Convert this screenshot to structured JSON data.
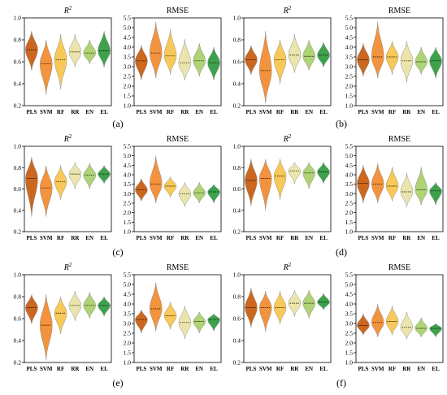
{
  "colors": {
    "PLS": "#c85a0c",
    "SVM": "#f28a2e",
    "RF": "#f7c44a",
    "RR": "#e9e3a6",
    "EN": "#a8cf6a",
    "EL": "#2e9a3e"
  },
  "chart_data": [
    {
      "label": "(a)",
      "panels": [
        {
          "type": "violin",
          "title": "R",
          "title_sup": "2",
          "categories": [
            "PLS",
            "SVM",
            "RF",
            "RR",
            "EN",
            "EL"
          ],
          "ylim": [
            0.2,
            1.0
          ],
          "yticks": [
            "0.2",
            "0.4",
            "0.6",
            "0.8",
            "1.0"
          ],
          "series": [
            {
              "name": "PLS",
              "min": 0.52,
              "max": 0.88,
              "median": 0.71
            },
            {
              "name": "SVM",
              "min": 0.3,
              "max": 0.8,
              "median": 0.58
            },
            {
              "name": "RF",
              "min": 0.35,
              "max": 0.85,
              "median": 0.62
            },
            {
              "name": "RR",
              "min": 0.55,
              "max": 0.85,
              "median": 0.69
            },
            {
              "name": "EN",
              "min": 0.58,
              "max": 0.8,
              "median": 0.68
            },
            {
              "name": "EL",
              "min": 0.55,
              "max": 0.88,
              "median": 0.7
            }
          ]
        },
        {
          "type": "violin",
          "title": "RMSE",
          "categories": [
            "PLS",
            "SVM",
            "RF",
            "RR",
            "EN",
            "EL"
          ],
          "ylim": [
            1.0,
            5.5
          ],
          "yticks": [
            "1.0",
            "1.5",
            "2.0",
            "2.5",
            "3.0",
            "3.5",
            "4.0",
            "4.5",
            "5.0",
            "5.5"
          ],
          "series": [
            {
              "name": "PLS",
              "min": 2.3,
              "max": 4.1,
              "median": 3.3
            },
            {
              "name": "SVM",
              "min": 2.4,
              "max": 5.3,
              "median": 3.7
            },
            {
              "name": "RF",
              "min": 2.6,
              "max": 4.9,
              "median": 3.55
            },
            {
              "name": "RR",
              "min": 2.3,
              "max": 4.4,
              "median": 3.2
            },
            {
              "name": "EN",
              "min": 2.5,
              "max": 4.2,
              "median": 3.3
            },
            {
              "name": "EL",
              "min": 2.3,
              "max": 4.0,
              "median": 3.2
            }
          ]
        }
      ]
    },
    {
      "label": "(b)",
      "panels": [
        {
          "type": "violin",
          "title": "R",
          "title_sup": "2",
          "categories": [
            "PLS",
            "SVM",
            "RF",
            "RR",
            "EN",
            "EL"
          ],
          "ylim": [
            0.2,
            1.0
          ],
          "yticks": [
            "0.2",
            "0.4",
            "0.6",
            "0.8",
            "1.0"
          ],
          "series": [
            {
              "name": "PLS",
              "min": 0.48,
              "max": 0.75,
              "median": 0.62
            },
            {
              "name": "SVM",
              "min": 0.22,
              "max": 0.88,
              "median": 0.52
            },
            {
              "name": "RF",
              "min": 0.4,
              "max": 0.8,
              "median": 0.62
            },
            {
              "name": "RR",
              "min": 0.5,
              "max": 0.85,
              "median": 0.66
            },
            {
              "name": "EN",
              "min": 0.52,
              "max": 0.8,
              "median": 0.65
            },
            {
              "name": "EL",
              "min": 0.55,
              "max": 0.78,
              "median": 0.66
            }
          ]
        },
        {
          "type": "violin",
          "title": "RMSE",
          "categories": [
            "PLS",
            "SVM",
            "RF",
            "RR",
            "EN",
            "EL"
          ],
          "ylim": [
            1.0,
            5.5
          ],
          "yticks": [
            "1.0",
            "1.5",
            "2.0",
            "2.5",
            "3.0",
            "3.5",
            "4.0",
            "4.5",
            "5.0",
            "5.5"
          ],
          "series": [
            {
              "name": "PLS",
              "min": 2.5,
              "max": 4.2,
              "median": 3.35
            },
            {
              "name": "SVM",
              "min": 2.4,
              "max": 5.3,
              "median": 3.5
            },
            {
              "name": "RF",
              "min": 2.6,
              "max": 4.3,
              "median": 3.5
            },
            {
              "name": "RR",
              "min": 2.2,
              "max": 4.3,
              "median": 3.3
            },
            {
              "name": "EN",
              "min": 2.6,
              "max": 4.0,
              "median": 3.25
            },
            {
              "name": "EL",
              "min": 2.4,
              "max": 4.0,
              "median": 3.3
            }
          ]
        }
      ]
    },
    {
      "label": "(c)",
      "panels": [
        {
          "type": "violin",
          "title": "R",
          "title_sup": "2",
          "categories": [
            "PLS",
            "SVM",
            "RF",
            "RR",
            "EN",
            "EL"
          ],
          "ylim": [
            0.2,
            1.0
          ],
          "yticks": [
            "0.2",
            "0.4",
            "0.6",
            "0.8",
            "1.0"
          ],
          "series": [
            {
              "name": "PLS",
              "min": 0.34,
              "max": 0.9,
              "median": 0.7
            },
            {
              "name": "SVM",
              "min": 0.34,
              "max": 0.82,
              "median": 0.61
            },
            {
              "name": "RF",
              "min": 0.5,
              "max": 0.82,
              "median": 0.67
            },
            {
              "name": "RR",
              "min": 0.6,
              "max": 0.85,
              "median": 0.74
            },
            {
              "name": "EN",
              "min": 0.6,
              "max": 0.84,
              "median": 0.73
            },
            {
              "name": "EL",
              "min": 0.65,
              "max": 0.82,
              "median": 0.74
            }
          ]
        },
        {
          "type": "violin",
          "title": "RMSE",
          "categories": [
            "PLS",
            "SVM",
            "RF",
            "RR",
            "EN",
            "EL"
          ],
          "ylim": [
            1.0,
            5.5
          ],
          "yticks": [
            "1.0",
            "1.5",
            "2.0",
            "2.5",
            "3.0",
            "3.5",
            "4.0",
            "4.5",
            "5.0",
            "5.5"
          ],
          "series": [
            {
              "name": "PLS",
              "min": 2.6,
              "max": 3.8,
              "median": 3.2
            },
            {
              "name": "SVM",
              "min": 2.5,
              "max": 5.0,
              "median": 3.5
            },
            {
              "name": "RF",
              "min": 2.8,
              "max": 3.9,
              "median": 3.4
            },
            {
              "name": "RR",
              "min": 2.3,
              "max": 3.6,
              "median": 3.0
            },
            {
              "name": "EN",
              "min": 2.5,
              "max": 3.6,
              "median": 3.05
            },
            {
              "name": "EL",
              "min": 2.5,
              "max": 3.5,
              "median": 3.1
            }
          ]
        }
      ]
    },
    {
      "label": "(d)",
      "panels": [
        {
          "type": "violin",
          "title": "R",
          "title_sup": "2",
          "categories": [
            "PLS",
            "SVM",
            "RF",
            "RR",
            "EN",
            "EL"
          ],
          "ylim": [
            0.2,
            1.0
          ],
          "yticks": [
            "0.2",
            "0.4",
            "0.6",
            "0.8",
            "1.0"
          ],
          "series": [
            {
              "name": "PLS",
              "min": 0.44,
              "max": 0.88,
              "median": 0.68
            },
            {
              "name": "SVM",
              "min": 0.4,
              "max": 0.88,
              "median": 0.7
            },
            {
              "name": "RF",
              "min": 0.5,
              "max": 0.88,
              "median": 0.72
            },
            {
              "name": "RR",
              "min": 0.65,
              "max": 0.85,
              "median": 0.77
            },
            {
              "name": "EN",
              "min": 0.6,
              "max": 0.85,
              "median": 0.75
            },
            {
              "name": "EL",
              "min": 0.65,
              "max": 0.85,
              "median": 0.76
            }
          ]
        },
        {
          "type": "violin",
          "title": "RMSE",
          "categories": [
            "PLS",
            "SVM",
            "RF",
            "RR",
            "EN",
            "EL"
          ],
          "ylim": [
            1.0,
            5.5
          ],
          "yticks": [
            "1.0",
            "1.5",
            "2.0",
            "2.5",
            "3.0",
            "3.5",
            "4.0",
            "4.5",
            "5.0",
            "5.5"
          ],
          "series": [
            {
              "name": "PLS",
              "min": 2.5,
              "max": 4.5,
              "median": 3.55
            },
            {
              "name": "SVM",
              "min": 2.5,
              "max": 4.6,
              "median": 3.5
            },
            {
              "name": "RF",
              "min": 2.6,
              "max": 4.4,
              "median": 3.4
            },
            {
              "name": "RR",
              "min": 2.3,
              "max": 4.1,
              "median": 3.1
            },
            {
              "name": "EN",
              "min": 2.4,
              "max": 4.4,
              "median": 3.2
            },
            {
              "name": "EL",
              "min": 2.4,
              "max": 3.6,
              "median": 3.15
            }
          ]
        }
      ]
    },
    {
      "label": "(e)",
      "panels": [
        {
          "type": "violin",
          "title": "R",
          "title_sup": "2",
          "categories": [
            "PLS",
            "SVM",
            "RF",
            "RR",
            "EN",
            "EL"
          ],
          "ylim": [
            0.2,
            1.0
          ],
          "yticks": [
            "0.2",
            "0.4",
            "0.6",
            "0.8",
            "1.0"
          ],
          "series": [
            {
              "name": "PLS",
              "min": 0.55,
              "max": 0.82,
              "median": 0.7
            },
            {
              "name": "SVM",
              "min": 0.22,
              "max": 0.82,
              "median": 0.54
            },
            {
              "name": "RF",
              "min": 0.46,
              "max": 0.8,
              "median": 0.65
            },
            {
              "name": "RR",
              "min": 0.58,
              "max": 0.85,
              "median": 0.72
            },
            {
              "name": "EN",
              "min": 0.6,
              "max": 0.84,
              "median": 0.72
            },
            {
              "name": "EL",
              "min": 0.62,
              "max": 0.8,
              "median": 0.72
            }
          ]
        },
        {
          "type": "violin",
          "title": "RMSE",
          "categories": [
            "PLS",
            "SVM",
            "RF",
            "RR",
            "EN",
            "EL"
          ],
          "ylim": [
            1.0,
            5.5
          ],
          "yticks": [
            "1.0",
            "1.5",
            "2.0",
            "2.5",
            "3.0",
            "3.5",
            "4.0",
            "4.5",
            "5.0",
            "5.5"
          ],
          "series": [
            {
              "name": "PLS",
              "min": 2.5,
              "max": 3.7,
              "median": 3.2
            },
            {
              "name": "SVM",
              "min": 2.6,
              "max": 5.1,
              "median": 3.75
            },
            {
              "name": "RF",
              "min": 2.7,
              "max": 4.1,
              "median": 3.4
            },
            {
              "name": "RR",
              "min": 2.2,
              "max": 3.9,
              "median": 3.05
            },
            {
              "name": "EN",
              "min": 2.5,
              "max": 3.6,
              "median": 3.1
            },
            {
              "name": "EL",
              "min": 2.6,
              "max": 3.5,
              "median": 3.2
            }
          ]
        }
      ]
    },
    {
      "label": "(f)",
      "panels": [
        {
          "type": "violin",
          "title": "R",
          "title_sup": "2",
          "categories": [
            "PLS",
            "SVM",
            "RF",
            "RR",
            "EN",
            "EL"
          ],
          "ylim": [
            0.2,
            1.0
          ],
          "yticks": [
            "0.2",
            "0.4",
            "0.6",
            "0.8",
            "1.0"
          ],
          "series": [
            {
              "name": "PLS",
              "min": 0.52,
              "max": 0.88,
              "median": 0.7
            },
            {
              "name": "SVM",
              "min": 0.48,
              "max": 0.85,
              "median": 0.7
            },
            {
              "name": "RF",
              "min": 0.55,
              "max": 0.85,
              "median": 0.7
            },
            {
              "name": "RR",
              "min": 0.62,
              "max": 0.86,
              "median": 0.74
            },
            {
              "name": "EN",
              "min": 0.6,
              "max": 0.86,
              "median": 0.74
            },
            {
              "name": "EL",
              "min": 0.68,
              "max": 0.83,
              "median": 0.75
            }
          ]
        },
        {
          "type": "violin",
          "title": "RMSE",
          "categories": [
            "PLS",
            "SVM",
            "RF",
            "RR",
            "EN",
            "EL"
          ],
          "ylim": [
            1.0,
            5.5
          ],
          "yticks": [
            "1.0",
            "1.5",
            "2.0",
            "2.5",
            "3.0",
            "3.5",
            "4.0",
            "4.5",
            "5.0",
            "5.5"
          ],
          "series": [
            {
              "name": "PLS",
              "min": 2.4,
              "max": 3.5,
              "median": 2.9
            },
            {
              "name": "SVM",
              "min": 2.3,
              "max": 4.0,
              "median": 3.05
            },
            {
              "name": "RF",
              "min": 2.4,
              "max": 3.9,
              "median": 3.1
            },
            {
              "name": "RR",
              "min": 2.2,
              "max": 3.6,
              "median": 2.8
            },
            {
              "name": "EN",
              "min": 2.3,
              "max": 3.3,
              "median": 2.75
            },
            {
              "name": "EL",
              "min": 2.3,
              "max": 3.0,
              "median": 2.75
            }
          ]
        }
      ]
    }
  ]
}
